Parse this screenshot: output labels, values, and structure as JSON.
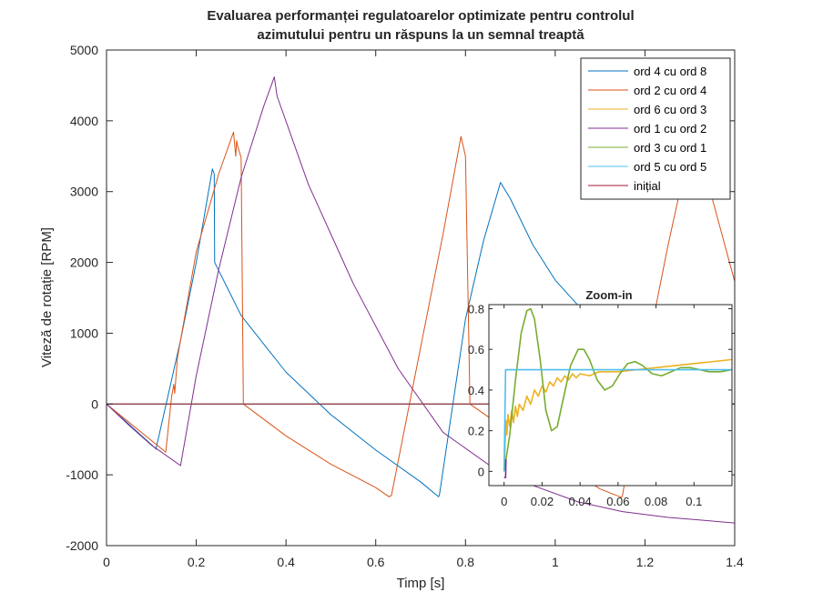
{
  "chart_data": [
    {
      "type": "line",
      "title_lines": [
        "Evaluarea performanței regulatoarelor optimizate pentru controlul",
        "azimutului pentru un răspuns la un semnal treaptă"
      ],
      "xlabel": "Timp [s]",
      "ylabel": "Viteză de rotație [RPM]",
      "xlim": [
        0,
        1.4
      ],
      "ylim": [
        -2000,
        5000
      ],
      "x_ticks": [
        0,
        0.2,
        0.4,
        0.6,
        0.8,
        1,
        1.2,
        1.4
      ],
      "x_tick_labels": [
        "0",
        "0.2",
        "0.4",
        "0.6",
        "0.8",
        "1",
        "1.2",
        "1.4"
      ],
      "y_ticks": [
        -2000,
        -1000,
        0,
        1000,
        2000,
        3000,
        4000,
        5000
      ],
      "y_tick_labels": [
        "-2000",
        "-1000",
        "0",
        "1000",
        "2000",
        "3000",
        "4000",
        "5000"
      ],
      "grid": false,
      "legend_position": "top-right",
      "series": [
        {
          "name": "ord 4 cu ord 8",
          "color": "#0072BD",
          "points": [
            [
              0,
              0
            ],
            [
              0.11,
              -630
            ],
            [
              0.11,
              -640
            ],
            [
              0.165,
              900
            ],
            [
              0.2,
              2000
            ],
            [
              0.236,
              3320
            ],
            [
              0.24,
              3250
            ],
            [
              0.241,
              2000
            ],
            [
              0.3,
              1250
            ],
            [
              0.4,
              450
            ],
            [
              0.5,
              -150
            ],
            [
              0.6,
              -650
            ],
            [
              0.7,
              -1100
            ],
            [
              0.74,
              -1310
            ],
            [
              0.742,
              -1280
            ],
            [
              0.8,
              1200
            ],
            [
              0.84,
              2300
            ],
            [
              0.878,
              3130
            ],
            [
              0.9,
              2900
            ],
            [
              0.95,
              2250
            ],
            [
              1.0,
              1750
            ],
            [
              1.05,
              1400
            ]
          ]
        },
        {
          "name": "ord 2 cu ord 4",
          "color": "#D95319",
          "points": [
            [
              0,
              0
            ],
            [
              0.132,
              -680
            ],
            [
              0.145,
              100
            ],
            [
              0.15,
              280
            ],
            [
              0.152,
              150
            ],
            [
              0.158,
              650
            ],
            [
              0.2,
              2150
            ],
            [
              0.25,
              3250
            ],
            [
              0.283,
              3840
            ],
            [
              0.288,
              3500
            ],
            [
              0.29,
              3720
            ],
            [
              0.292,
              3650
            ],
            [
              0.3,
              3480
            ],
            [
              0.305,
              0
            ],
            [
              0.4,
              -450
            ],
            [
              0.5,
              -850
            ],
            [
              0.6,
              -1180
            ],
            [
              0.63,
              -1310
            ],
            [
              0.635,
              -1290
            ],
            [
              0.7,
              800
            ],
            [
              0.75,
              2400
            ],
            [
              0.79,
              3780
            ],
            [
              0.8,
              3500
            ],
            [
              0.81,
              0
            ],
            [
              0.9,
              -400
            ],
            [
              1.0,
              -800
            ],
            [
              1.1,
              -1200
            ],
            [
              1.148,
              -1320
            ],
            [
              1.15,
              -1290
            ],
            [
              1.2,
              600
            ],
            [
              1.25,
              2200
            ],
            [
              1.3,
              3650
            ],
            [
              1.32,
              3600
            ],
            [
              1.35,
              2900
            ],
            [
              1.4,
              1730
            ]
          ]
        },
        {
          "name": "ord 6 cu ord 3",
          "color": "#EDB120",
          "points": [
            [
              0,
              0
            ],
            [
              1.4,
              0
            ]
          ]
        },
        {
          "name": "ord 1 cu ord 2",
          "color": "#7E2F8E",
          "points": [
            [
              0,
              0
            ],
            [
              0.05,
              -300
            ],
            [
              0.1,
              -580
            ],
            [
              0.165,
              -870
            ],
            [
              0.2,
              400
            ],
            [
              0.25,
              1900
            ],
            [
              0.3,
              3200
            ],
            [
              0.35,
              4200
            ],
            [
              0.374,
              4620
            ],
            [
              0.38,
              4350
            ],
            [
              0.45,
              3100
            ],
            [
              0.55,
              1700
            ],
            [
              0.65,
              500
            ],
            [
              0.75,
              -400
            ],
            [
              0.85,
              -850
            ],
            [
              0.95,
              -1150
            ],
            [
              1.05,
              -1380
            ],
            [
              1.15,
              -1520
            ],
            [
              1.25,
              -1600
            ],
            [
              1.4,
              -1680
            ]
          ]
        },
        {
          "name": "ord 3 cu ord 1",
          "color": "#77AC30",
          "points": [
            [
              0,
              0
            ],
            [
              1.4,
              0
            ]
          ]
        },
        {
          "name": "ord 5 cu ord 5",
          "color": "#4DBEEE",
          "points": [
            [
              0,
              0
            ],
            [
              1.4,
              0
            ]
          ]
        },
        {
          "name": "inițial",
          "color": "#A2142F",
          "points": [
            [
              0,
              0
            ],
            [
              1.4,
              0
            ]
          ]
        }
      ]
    },
    {
      "type": "line",
      "title": "Zoom-in",
      "xlim": [
        -0.008,
        0.12
      ],
      "ylim": [
        -0.07,
        0.82
      ],
      "x_ticks": [
        0,
        0.02,
        0.04,
        0.06,
        0.08,
        0.1
      ],
      "x_tick_labels": [
        "0",
        "0.02",
        "0.04",
        "0.06",
        "0.08",
        "0.1"
      ],
      "y_ticks": [
        0,
        0.2,
        0.4,
        0.6,
        0.8
      ],
      "y_tick_labels": [
        "0",
        "0.2",
        "0.4",
        "0.6",
        "0.8"
      ],
      "series": [
        {
          "name": "ord 6 cu ord 3",
          "color": "#EDB120",
          "points": [
            [
              0,
              0
            ],
            [
              0.001,
              0.25
            ],
            [
              0.0015,
              0.18
            ],
            [
              0.002,
              0.28
            ],
            [
              0.003,
              0.22
            ],
            [
              0.004,
              0.3
            ],
            [
              0.005,
              0.24
            ],
            [
              0.006,
              0.32
            ],
            [
              0.007,
              0.27
            ],
            [
              0.008,
              0.33
            ],
            [
              0.01,
              0.3
            ],
            [
              0.012,
              0.37
            ],
            [
              0.014,
              0.33
            ],
            [
              0.016,
              0.4
            ],
            [
              0.018,
              0.37
            ],
            [
              0.02,
              0.42
            ],
            [
              0.022,
              0.39
            ],
            [
              0.024,
              0.44
            ],
            [
              0.026,
              0.42
            ],
            [
              0.028,
              0.46
            ],
            [
              0.03,
              0.44
            ],
            [
              0.032,
              0.47
            ],
            [
              0.034,
              0.45
            ],
            [
              0.036,
              0.48
            ],
            [
              0.038,
              0.46
            ],
            [
              0.04,
              0.48
            ],
            [
              0.045,
              0.47
            ],
            [
              0.05,
              0.49
            ],
            [
              0.06,
              0.49
            ],
            [
              0.07,
              0.5
            ],
            [
              0.08,
              0.51
            ],
            [
              0.09,
              0.52
            ],
            [
              0.1,
              0.53
            ],
            [
              0.11,
              0.54
            ],
            [
              0.12,
              0.55
            ]
          ]
        },
        {
          "name": "ord 3 cu ord 1",
          "color": "#77AC30",
          "points": [
            [
              0,
              0
            ],
            [
              0.003,
              0.18
            ],
            [
              0.006,
              0.45
            ],
            [
              0.009,
              0.68
            ],
            [
              0.012,
              0.79
            ],
            [
              0.014,
              0.8
            ],
            [
              0.016,
              0.75
            ],
            [
              0.019,
              0.55
            ],
            [
              0.022,
              0.3
            ],
            [
              0.025,
              0.2
            ],
            [
              0.028,
              0.22
            ],
            [
              0.031,
              0.35
            ],
            [
              0.035,
              0.52
            ],
            [
              0.039,
              0.6
            ],
            [
              0.042,
              0.6
            ],
            [
              0.045,
              0.55
            ],
            [
              0.049,
              0.45
            ],
            [
              0.053,
              0.4
            ],
            [
              0.057,
              0.42
            ],
            [
              0.061,
              0.48
            ],
            [
              0.065,
              0.53
            ],
            [
              0.069,
              0.54
            ],
            [
              0.073,
              0.52
            ],
            [
              0.078,
              0.48
            ],
            [
              0.083,
              0.47
            ],
            [
              0.088,
              0.49
            ],
            [
              0.093,
              0.51
            ],
            [
              0.098,
              0.51
            ],
            [
              0.103,
              0.5
            ],
            [
              0.108,
              0.49
            ],
            [
              0.114,
              0.49
            ],
            [
              0.12,
              0.5
            ]
          ]
        },
        {
          "name": "ord 5 cu ord 5",
          "color": "#4DBEEE",
          "points": [
            [
              0,
              0
            ],
            [
              0.0008,
              0.5
            ],
            [
              0.12,
              0.5
            ]
          ]
        },
        {
          "name": "ord 1 cu ord 2",
          "color": "#7E2F8E",
          "points": [
            [
              0,
              -0.03
            ],
            [
              0.0008,
              -0.03
            ],
            [
              0.001,
              0.06
            ]
          ]
        }
      ]
    }
  ]
}
